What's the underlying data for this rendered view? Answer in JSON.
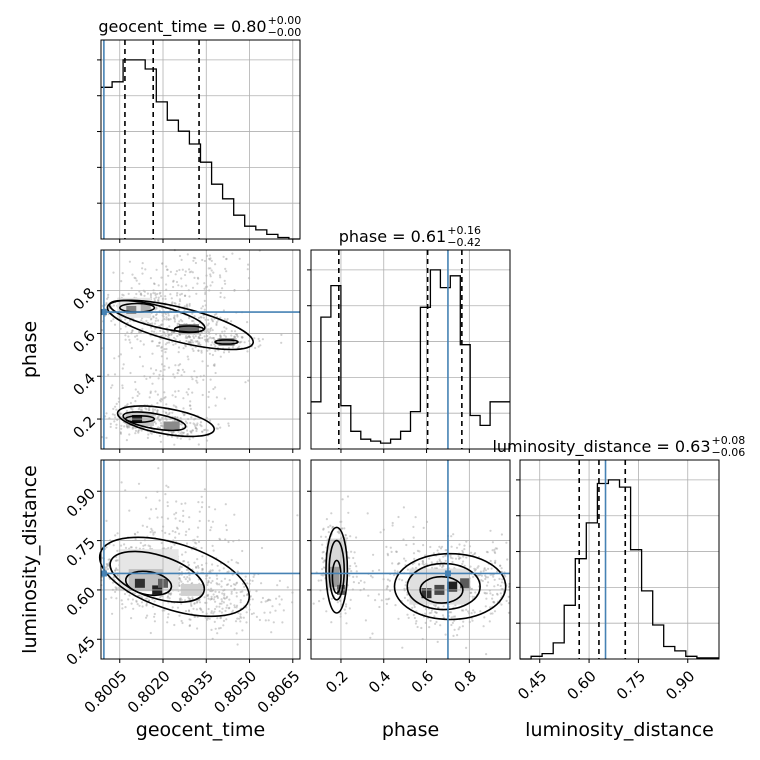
{
  "chart_data": {
    "type": "corner",
    "parameters": [
      "geocent_time",
      "phase",
      "luminosity_distance"
    ],
    "axis_labels": {
      "geocent_time": "geocent_time",
      "phase": "phase",
      "luminosity_distance": "luminosity_distance"
    },
    "titles": {
      "geocent_time": {
        "name": "geocent_time",
        "median": "0.80",
        "plus": "+0.00",
        "minus": "−0.00"
      },
      "phase": {
        "name": "phase",
        "median": "0.61",
        "plus": "+0.16",
        "minus": "−0.42"
      },
      "luminosity_distance": {
        "name": "luminosity_distance",
        "median": "0.63",
        "plus": "+0.08",
        "minus": "−0.06"
      }
    },
    "ranges": {
      "geocent_time": [
        0.79985,
        0.80675
      ],
      "phase": [
        0.06,
        0.99
      ],
      "luminosity_distance": [
        0.39,
        0.995
      ]
    },
    "ticks": {
      "geocent_time": [
        "0.8005",
        "0.8020",
        "0.8035",
        "0.8050",
        "0.8065"
      ],
      "phase": [
        "0.2",
        "0.4",
        "0.6",
        "0.8"
      ],
      "luminosity_distance": [
        "0.45",
        "0.60",
        "0.75",
        "0.90"
      ]
    },
    "tick_values": {
      "geocent_time": [
        0.8005,
        0.802,
        0.8035,
        0.805,
        0.8065
      ],
      "phase": [
        0.2,
        0.4,
        0.6,
        0.8
      ],
      "luminosity_distance": [
        0.45,
        0.6,
        0.75,
        0.9
      ]
    },
    "truths": {
      "geocent_time": 0.79995,
      "phase": 0.7,
      "luminosity_distance": 0.65
    },
    "quantiles": {
      "geocent_time": [
        0.80068,
        0.80166,
        0.80325
      ],
      "phase": [
        0.19,
        0.605,
        0.765
      ],
      "luminosity_distance": [
        0.57,
        0.63,
        0.71
      ]
    },
    "histograms": {
      "geocent_time": [
        0.83,
        0.86,
        0.98,
        0.98,
        0.93,
        0.75,
        0.65,
        0.59,
        0.52,
        0.42,
        0.3,
        0.22,
        0.13,
        0.07,
        0.05,
        0.025,
        0.008,
        0.0
      ],
      "phase": [
        0.24,
        0.67,
        0.83,
        0.22,
        0.09,
        0.05,
        0.04,
        0.03,
        0.05,
        0.09,
        0.19,
        0.72,
        0.91,
        0.82,
        0.88,
        0.53,
        0.17,
        0.12,
        0.24,
        0.24
      ],
      "luminosity_distance": [
        0.0,
        0.015,
        0.03,
        0.09,
        0.3,
        0.56,
        0.76,
        0.98,
        1.0,
        0.96,
        0.61,
        0.38,
        0.19,
        0.07,
        0.045,
        0.015,
        0.006,
        0.006
      ]
    },
    "grid": true,
    "legend": "none"
  }
}
